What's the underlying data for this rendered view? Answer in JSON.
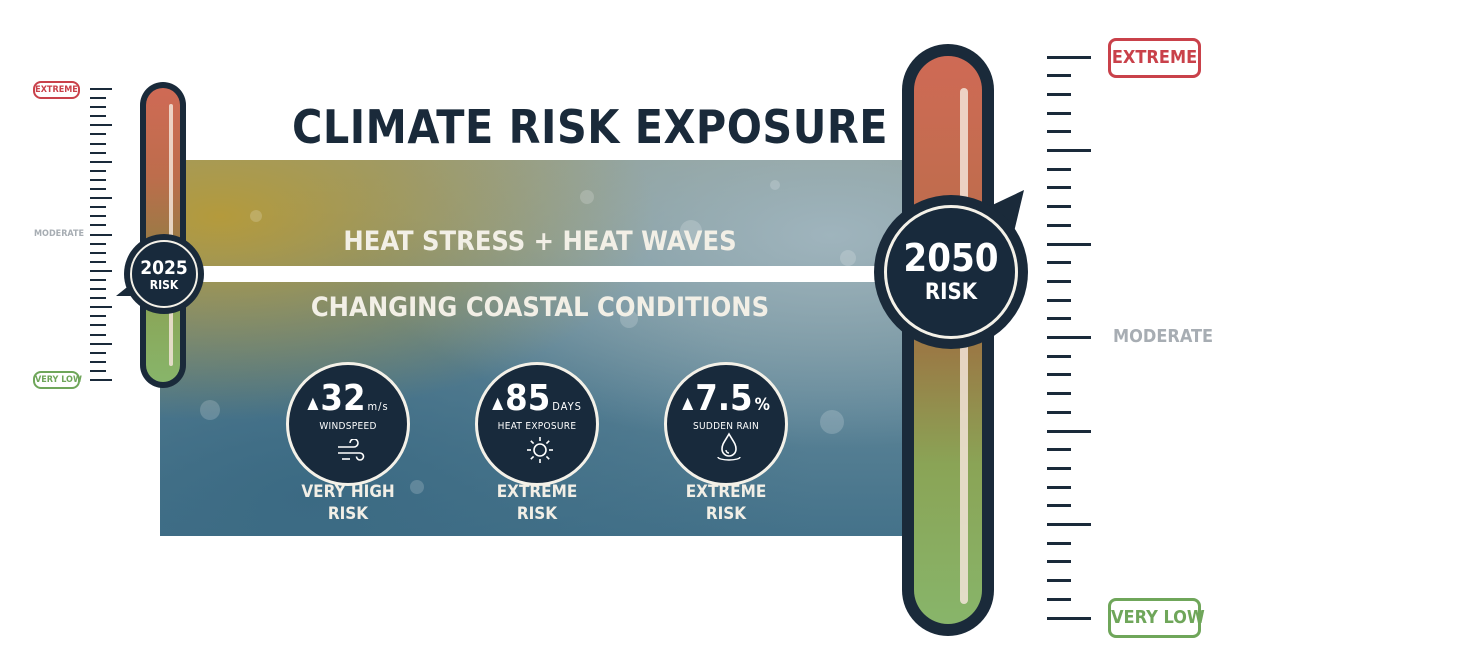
{
  "title": "CLIMATE RISK EXPOSURE",
  "sections": {
    "heat": "HEAT STRESS + HEAT WAVES",
    "coastal": "CHANGING COASTAL CONDITIONS"
  },
  "stats": [
    {
      "value": "32",
      "unit": "m/s",
      "label": "WINDSPEED",
      "icon": "wind-icon",
      "risk_line1": "VERY HIGH",
      "risk_line2": "RISK"
    },
    {
      "value": "85",
      "unit": "DAYS",
      "label": "HEAT EXPOSURE",
      "icon": "sun-icon",
      "risk_line1": "EXTREME",
      "risk_line2": "RISK"
    },
    {
      "value": "7.5",
      "unit": "%",
      "label": "SUDDEN RAIN",
      "icon": "water-drop-icon",
      "risk_line1": "EXTREME",
      "risk_line2": "RISK"
    }
  ],
  "gauge_2025": {
    "year": "2025",
    "label": "RISK",
    "scale_top": "EXTREME",
    "scale_mid": "MODERATE",
    "scale_bottom": "VERY LOW"
  },
  "gauge_2050": {
    "year": "2050",
    "label": "RISK",
    "scale_top": "EXTREME",
    "scale_mid": "MODERATE",
    "scale_bottom": "VERY LOW"
  },
  "colors": {
    "navy": "#1a2a3a",
    "extreme": "#c9414a",
    "very_low": "#6fa65a",
    "moderate": "#a7adb3"
  }
}
